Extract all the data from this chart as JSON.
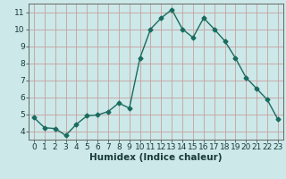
{
  "x": [
    0,
    1,
    2,
    3,
    4,
    5,
    6,
    7,
    8,
    9,
    10,
    11,
    12,
    13,
    14,
    15,
    16,
    17,
    18,
    19,
    20,
    21,
    22,
    23
  ],
  "y": [
    4.8,
    4.2,
    4.15,
    3.75,
    4.4,
    4.9,
    4.95,
    5.15,
    5.65,
    5.35,
    8.3,
    10.0,
    10.65,
    11.15,
    10.0,
    9.5,
    10.65,
    10.0,
    9.3,
    8.3,
    7.15,
    6.5,
    5.85,
    4.7
  ],
  "line_color": "#1a6b5e",
  "marker": "D",
  "markersize": 2.5,
  "linewidth": 1.0,
  "xlabel": "Humidex (Indice chaleur)",
  "xlim": [
    -0.5,
    23.5
  ],
  "ylim": [
    3.5,
    11.5
  ],
  "yticks": [
    4,
    5,
    6,
    7,
    8,
    9,
    10,
    11
  ],
  "xticks": [
    0,
    1,
    2,
    3,
    4,
    5,
    6,
    7,
    8,
    9,
    10,
    11,
    12,
    13,
    14,
    15,
    16,
    17,
    18,
    19,
    20,
    21,
    22,
    23
  ],
  "bg_color": "#cce8e8",
  "grid_color": "#c8a0a0",
  "tick_fontsize": 6.5,
  "xlabel_fontsize": 7.5
}
